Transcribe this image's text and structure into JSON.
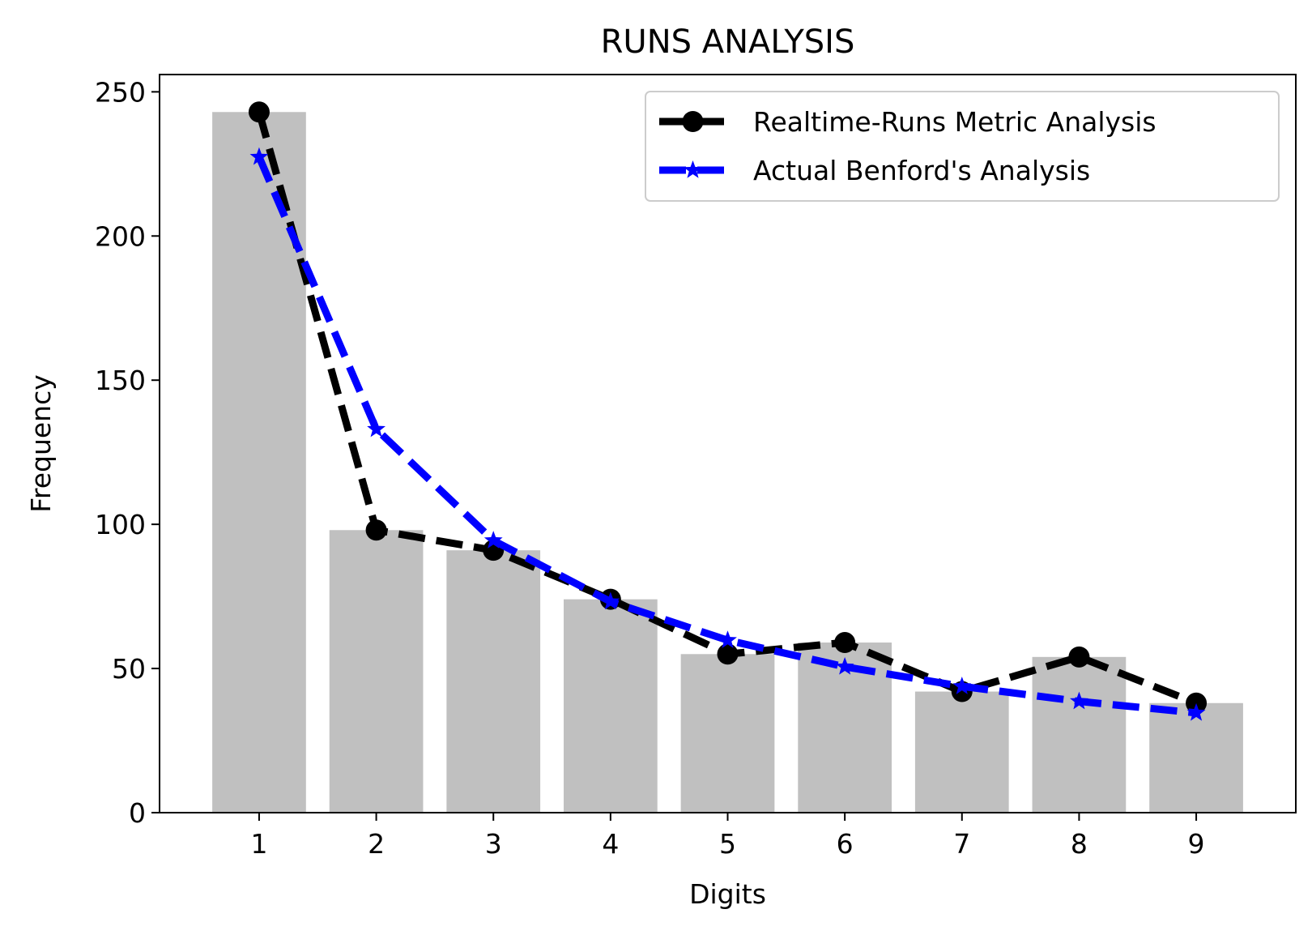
{
  "chart_data": {
    "type": "bar",
    "title": "RUNS ANALYSIS",
    "xlabel": "Digits",
    "ylabel": "Frequency",
    "categories": [
      "1",
      "2",
      "3",
      "4",
      "5",
      "6",
      "7",
      "8",
      "9"
    ],
    "x": [
      1,
      2,
      3,
      4,
      5,
      6,
      7,
      8,
      9
    ],
    "bars": {
      "values": [
        243,
        98,
        91,
        74,
        55,
        59,
        42,
        54,
        38
      ],
      "color": "#c0c0c0"
    },
    "series": [
      {
        "name": "Realtime-Runs Metric Analysis",
        "type": "line",
        "style": "dashed",
        "marker": "circle",
        "color": "#000000",
        "values": [
          243,
          98,
          91,
          74,
          55,
          59,
          42,
          54,
          38
        ]
      },
      {
        "name": "Actual Benford's Analysis",
        "type": "line",
        "style": "dashed",
        "marker": "star",
        "color": "#0000ff",
        "values": [
          227.4,
          133.0,
          94.4,
          73.2,
          59.8,
          50.6,
          43.8,
          38.6,
          34.6
        ]
      }
    ],
    "xlim": [
      0.15,
      9.85
    ],
    "ylim": [
      0,
      256
    ],
    "yticks": [
      0,
      50,
      100,
      150,
      200,
      250
    ],
    "xticks": [
      1,
      2,
      3,
      4,
      5,
      6,
      7,
      8,
      9
    ],
    "grid": false,
    "legend_position": "top-right"
  }
}
